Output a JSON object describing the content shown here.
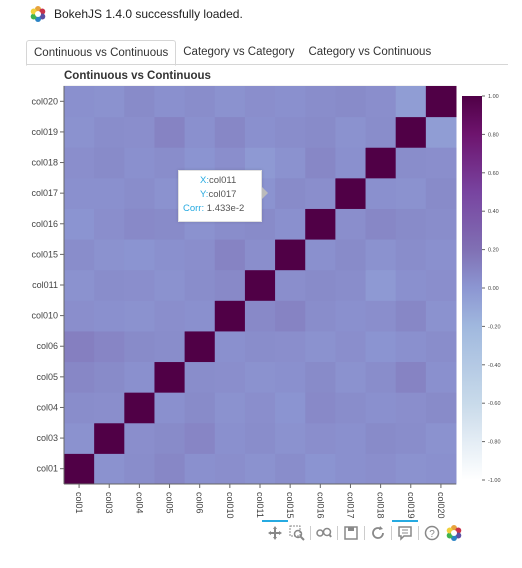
{
  "banner": {
    "text": "BokehJS 1.4.0 successfully loaded.",
    "logo_icon": "bokeh-logo-icon"
  },
  "tabs": [
    {
      "label": "Continuous vs Continuous",
      "active": true
    },
    {
      "label": "Category vs Category",
      "active": false
    },
    {
      "label": "Category vs Continuous",
      "active": false
    }
  ],
  "tooltip": {
    "x_label": "X:",
    "x_value": "col011",
    "y_label": "Y:",
    "y_value": "col017",
    "corr_label": "Corr:",
    "corr_value": "1.433e-2"
  },
  "toolbar": [
    {
      "icon": "pan-icon",
      "active": true
    },
    {
      "icon": "box-zoom-icon",
      "active": false
    },
    {
      "icon": "wheel-zoom-icon",
      "active": false
    },
    {
      "icon": "save-icon",
      "active": false
    },
    {
      "icon": "reset-icon",
      "active": false
    },
    {
      "icon": "hover-icon",
      "active": true
    },
    {
      "icon": "help-icon",
      "active": false
    },
    {
      "icon": "bokeh-logo-icon",
      "active": false
    }
  ],
  "chart_data": {
    "type": "heatmap",
    "title": "Continuous vs Continuous",
    "x_categories": [
      "col01",
      "col03",
      "col04",
      "col05",
      "col06",
      "col010",
      "col011",
      "col015",
      "col016",
      "col017",
      "col018",
      "col019",
      "col020"
    ],
    "y_categories": [
      "col01",
      "col03",
      "col04",
      "col05",
      "col06",
      "col010",
      "col011",
      "col015",
      "col016",
      "col017",
      "col018",
      "col019",
      "col020"
    ],
    "values": [
      [
        1.0,
        0.02,
        0.05,
        0.08,
        0.03,
        0.04,
        0.02,
        0.05,
        0.01,
        0.03,
        0.04,
        0.02,
        0.03
      ],
      [
        0.02,
        1.0,
        0.04,
        0.06,
        0.09,
        0.03,
        0.05,
        0.02,
        0.04,
        0.03,
        0.06,
        0.05,
        0.02
      ],
      [
        0.05,
        0.04,
        1.0,
        0.03,
        0.06,
        0.02,
        0.04,
        0.01,
        0.07,
        0.05,
        0.03,
        0.04,
        0.06
      ],
      [
        0.08,
        0.06,
        0.03,
        1.0,
        0.05,
        0.04,
        0.02,
        0.03,
        0.06,
        0.02,
        0.05,
        0.1,
        0.03
      ],
      [
        0.12,
        0.09,
        0.06,
        0.05,
        1.0,
        0.03,
        0.05,
        0.04,
        0.02,
        0.04,
        0.01,
        0.03,
        0.05
      ],
      [
        0.04,
        0.03,
        0.02,
        0.04,
        0.03,
        1.0,
        0.07,
        0.1,
        0.05,
        0.03,
        0.04,
        0.08,
        0.02
      ],
      [
        0.02,
        0.05,
        0.04,
        0.02,
        0.05,
        0.07,
        1.0,
        0.04,
        0.06,
        0.05,
        -0.02,
        0.03,
        0.04
      ],
      [
        0.05,
        0.02,
        0.01,
        0.03,
        0.04,
        0.1,
        0.04,
        1.0,
        0.03,
        0.06,
        0.02,
        0.05,
        0.03
      ],
      [
        0.01,
        0.04,
        0.07,
        0.06,
        0.02,
        0.05,
        0.06,
        0.03,
        1.0,
        0.04,
        0.08,
        0.06,
        0.05
      ],
      [
        0.03,
        0.03,
        0.05,
        0.02,
        0.04,
        0.03,
        0.014,
        0.06,
        0.04,
        1.0,
        0.03,
        0.02,
        0.06
      ],
      [
        0.04,
        0.06,
        0.03,
        0.05,
        0.01,
        0.04,
        -0.02,
        0.02,
        0.08,
        0.03,
        1.0,
        0.05,
        0.04
      ],
      [
        0.02,
        0.05,
        0.04,
        0.1,
        0.03,
        0.08,
        0.03,
        0.05,
        0.06,
        0.02,
        0.05,
        1.0,
        -0.04
      ],
      [
        0.03,
        0.02,
        0.06,
        0.03,
        0.05,
        0.02,
        0.04,
        0.03,
        0.05,
        0.06,
        0.04,
        -0.04,
        1.0
      ]
    ],
    "color_range": [
      -1.0,
      1.0
    ],
    "colorbar_ticks": [
      "1.00",
      "0.80",
      "0.60",
      "0.40",
      "0.20",
      "0.00",
      "-0.20",
      "-0.40",
      "-0.60",
      "-0.80",
      "-1.00"
    ]
  }
}
